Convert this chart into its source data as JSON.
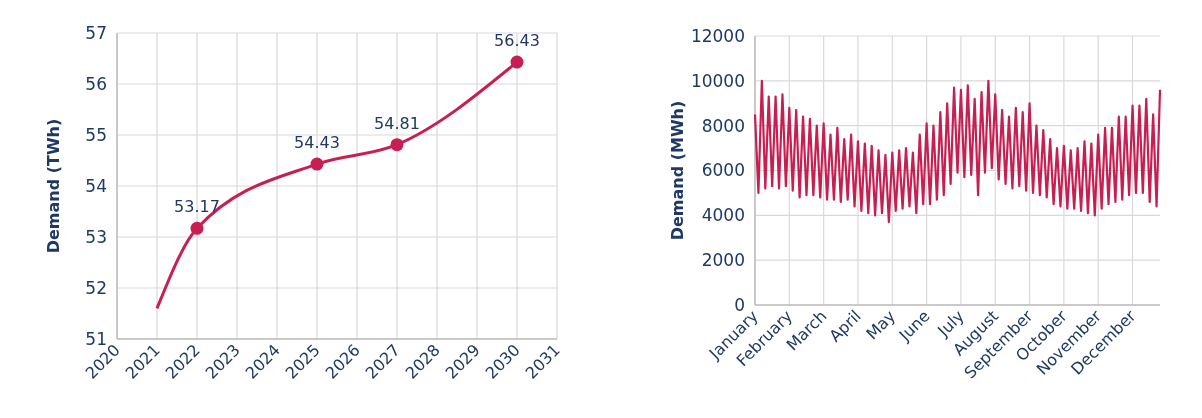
{
  "chart_data": [
    {
      "type": "line",
      "ylabel": "Demand (TWh)",
      "xlim": [
        2020,
        2031
      ],
      "xticks": [
        2020,
        2021,
        2022,
        2023,
        2024,
        2025,
        2026,
        2027,
        2028,
        2029,
        2030,
        2031
      ],
      "ylim": [
        51,
        57
      ],
      "yticks": [
        51,
        52,
        53,
        54,
        55,
        56,
        57
      ],
      "grid": true,
      "series": [
        {
          "color": "#c81f52",
          "marker": "none",
          "x": [
            2021,
            2022,
            2025,
            2027,
            2030
          ],
          "values": [
            51.6,
            53.17,
            54.43,
            54.81,
            56.43
          ]
        },
        {
          "type": "scatter",
          "color": "#c81f52",
          "marker": "circle",
          "x": [
            2022,
            2025,
            2027,
            2030
          ],
          "values": [
            53.17,
            54.43,
            54.81,
            56.43
          ],
          "value_labels": [
            "53.17",
            "54.43",
            "54.81",
            "56.43"
          ]
        }
      ]
    },
    {
      "type": "line",
      "ylabel": "Demand (MWh)",
      "categories": [
        "January",
        null,
        null,
        null,
        null,
        null,
        null,
        null,
        null,
        null,
        "February",
        null,
        null,
        null,
        null,
        null,
        null,
        null,
        null,
        null,
        "March",
        null,
        null,
        null,
        null,
        null,
        null,
        null,
        null,
        null,
        "April",
        null,
        null,
        null,
        null,
        null,
        null,
        null,
        null,
        null,
        "May",
        null,
        null,
        null,
        null,
        null,
        null,
        null,
        null,
        null,
        "June",
        null,
        null,
        null,
        null,
        null,
        null,
        null,
        null,
        null,
        "July",
        null,
        null,
        null,
        null,
        null,
        null,
        null,
        null,
        null,
        "August",
        null,
        null,
        null,
        null,
        null,
        null,
        null,
        null,
        null,
        "September",
        null,
        null,
        null,
        null,
        null,
        null,
        null,
        null,
        null,
        "October",
        null,
        null,
        null,
        null,
        null,
        null,
        null,
        null,
        null,
        "November",
        null,
        null,
        null,
        null,
        null,
        null,
        null,
        null,
        null,
        "December",
        null,
        null,
        null,
        null,
        null,
        null,
        null,
        null
      ],
      "ylim": [
        0,
        12000
      ],
      "yticks": [
        0,
        2000,
        4000,
        6000,
        8000,
        10000,
        12000
      ],
      "grid": true,
      "series": [
        {
          "color": "#c81f52",
          "marker": "none",
          "values": [
            8500,
            5000,
            10000,
            5200,
            9300,
            5300,
            9300,
            5200,
            9400,
            5300,
            8800,
            5100,
            8700,
            4800,
            8400,
            4900,
            8300,
            4900,
            8000,
            4800,
            8100,
            4700,
            7600,
            4700,
            7900,
            4600,
            7400,
            4700,
            7600,
            4400,
            7300,
            4200,
            7200,
            4100,
            7100,
            4000,
            6900,
            4100,
            6700,
            3700,
            6800,
            4200,
            6900,
            4300,
            7000,
            4400,
            6800,
            4100,
            7600,
            4500,
            8100,
            4500,
            8000,
            4700,
            8600,
            4900,
            9000,
            5400,
            9700,
            5900,
            9600,
            5700,
            9800,
            5800,
            9200,
            4900,
            9500,
            5900,
            10000,
            6100,
            9400,
            5600,
            8700,
            5400,
            8400,
            5200,
            8800,
            5300,
            8600,
            5100,
            9000,
            5000,
            8000,
            4900,
            7800,
            4800,
            7400,
            4500,
            7000,
            4400,
            7100,
            4300,
            6900,
            4300,
            7000,
            4200,
            7300,
            4100,
            7200,
            4000,
            7600,
            4300,
            7900,
            4500,
            7900,
            4600,
            8400,
            4700,
            8400,
            4900,
            8900,
            5000,
            8900,
            5000,
            9200,
            4600,
            8500,
            4400,
            9600
          ]
        }
      ]
    }
  ]
}
